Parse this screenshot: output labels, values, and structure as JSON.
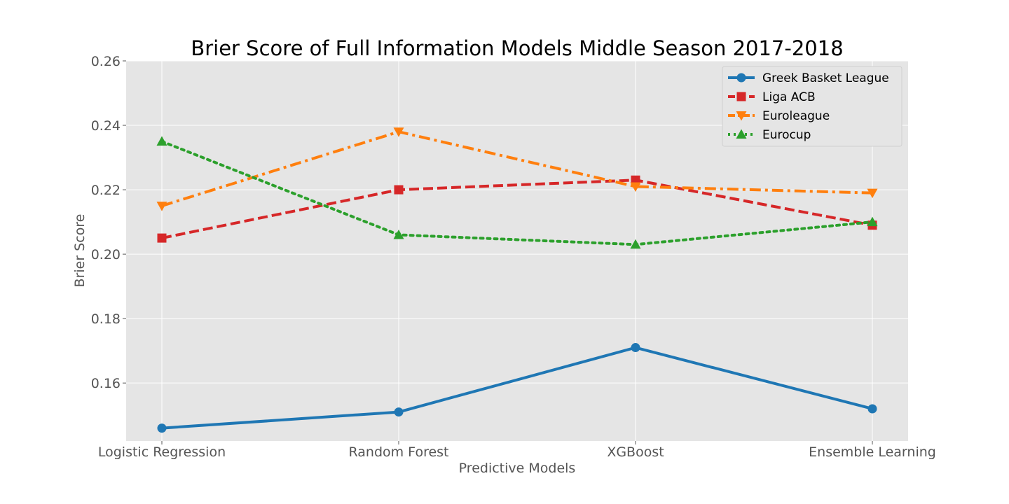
{
  "chart_data": {
    "type": "line",
    "title": "Brier Score of Full Information Models Middle Season 2017-2018",
    "xlabel": "Predictive Models",
    "ylabel": "Brier Score",
    "categories": [
      "Logistic Regression",
      "Random Forest",
      "XGBoost",
      "Ensemble Learning"
    ],
    "ylim": [
      0.142,
      0.26
    ],
    "yticks": [
      0.16,
      0.18,
      0.2,
      0.22,
      0.24,
      0.26
    ],
    "ytick_labels": [
      "0.16",
      "0.18",
      "0.20",
      "0.22",
      "0.24",
      "0.26"
    ],
    "grid": true,
    "legend_position": "top-right",
    "series": [
      {
        "name": "Greek Basket League",
        "values": [
          0.146,
          0.151,
          0.171,
          0.152
        ],
        "color": "#1f77b4",
        "marker": "circle",
        "linestyle": "solid"
      },
      {
        "name": "Liga ACB",
        "values": [
          0.205,
          0.22,
          0.223,
          0.209
        ],
        "color": "#d62728",
        "marker": "square",
        "linestyle": "dashed"
      },
      {
        "name": "Euroleague",
        "values": [
          0.215,
          0.238,
          0.221,
          0.219
        ],
        "color": "#ff7f0e",
        "marker": "triangle-down",
        "linestyle": "dashdot"
      },
      {
        "name": "Eurocup",
        "values": [
          0.235,
          0.206,
          0.203,
          0.21
        ],
        "color": "#2ca02c",
        "marker": "triangle-up",
        "linestyle": "dotted"
      }
    ]
  }
}
